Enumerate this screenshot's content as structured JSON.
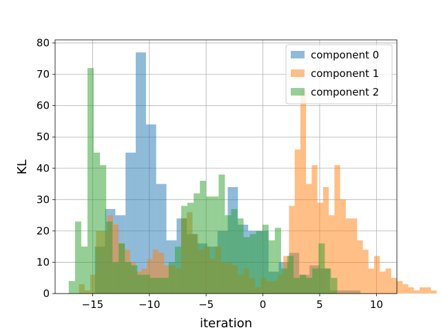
{
  "chart_data": {
    "type": "histogram",
    "xlabel": "iteration",
    "ylabel": "KL",
    "xlim": [
      -18.3,
      11.8
    ],
    "ylim": [
      0,
      81
    ],
    "xticks": [
      -15,
      -10,
      -5,
      0,
      5,
      10
    ],
    "xtick_labels": [
      "−15",
      "−10",
      "−5",
      "0",
      "5",
      "10"
    ],
    "yticks": [
      0,
      10,
      20,
      30,
      40,
      50,
      60,
      70,
      80
    ],
    "grid": true,
    "legend_position": "top-right",
    "alpha": 0.5,
    "series": [
      {
        "name": "component 0",
        "color": "#1f77b4",
        "bin_start": -14.8,
        "bin_width": 0.9,
        "values": [
          15,
          27,
          25,
          45,
          77,
          54,
          35,
          17,
          24,
          19,
          16,
          15,
          20,
          34,
          22,
          20,
          20,
          7,
          10,
          13,
          6,
          9,
          8,
          1,
          1,
          1
        ]
      },
      {
        "name": "component 1",
        "color": "#ff7f0e",
        "bin_start": -16.2,
        "bin_width": 0.5,
        "values": [
          3,
          1,
          6,
          20,
          20,
          25,
          22,
          16,
          14,
          10,
          7,
          8,
          11,
          14,
          13,
          9,
          9,
          8,
          24,
          26,
          19,
          14,
          15,
          11,
          15,
          10,
          10,
          9,
          6,
          8,
          5,
          2,
          5,
          4,
          4,
          6,
          12,
          28,
          46,
          65,
          35,
          41,
          29,
          34,
          25,
          41,
          30,
          24,
          24,
          17,
          14,
          8,
          12,
          7,
          8,
          5,
          4,
          3,
          2,
          1,
          2,
          2,
          1
        ]
      },
      {
        "name": "component 2",
        "color": "#2ca02c",
        "bin_start": -17.1,
        "bin_width": 0.55,
        "values": [
          4,
          23,
          15,
          72,
          45,
          41,
          23,
          10,
          16,
          10,
          9,
          6,
          6,
          5,
          5,
          5,
          10,
          15,
          28,
          29,
          32,
          36,
          31,
          31,
          38,
          25,
          27,
          24,
          18,
          19,
          20,
          22,
          17,
          21,
          8,
          12,
          5,
          6,
          5,
          8,
          16,
          8,
          5
        ]
      }
    ]
  }
}
